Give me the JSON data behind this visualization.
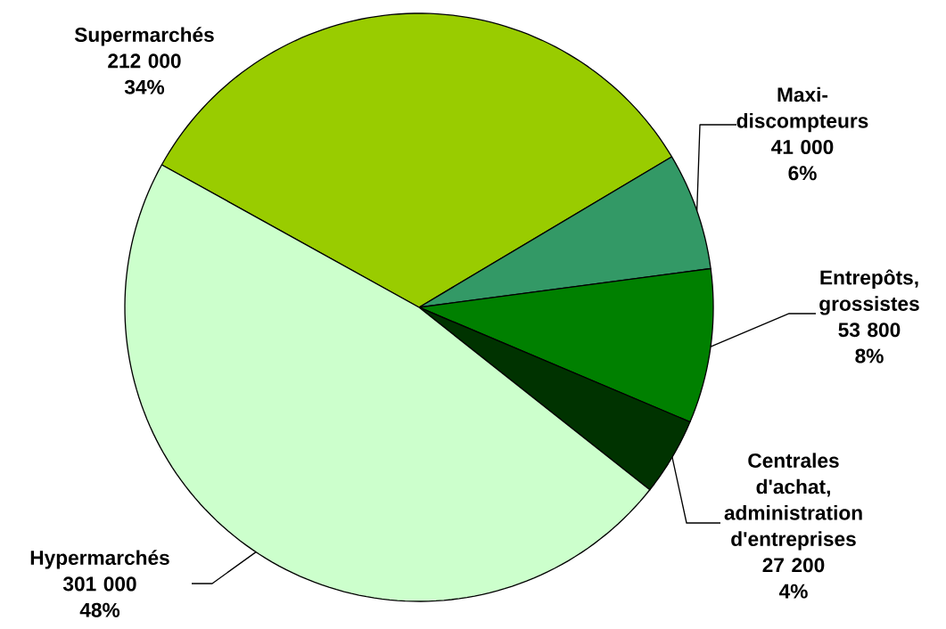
{
  "chart_data": {
    "type": "pie",
    "categories": [
      "Supermarchés",
      "Maxi-discompteurs",
      "Entrepôts, grossistes",
      "Centrales d'achat, administration d'entreprises",
      "Hypermarchés"
    ],
    "values": [
      212000,
      41000,
      53800,
      27200,
      301000
    ],
    "colors": [
      "#99cc00",
      "#339966",
      "#008000",
      "#003300",
      "#ccffcc"
    ],
    "value_labels": [
      "212 000",
      "41 000",
      "53 800",
      "27 200",
      "301 000"
    ],
    "annotations": [
      "34%",
      "6%",
      "8%",
      "4%",
      "48%"
    ]
  }
}
